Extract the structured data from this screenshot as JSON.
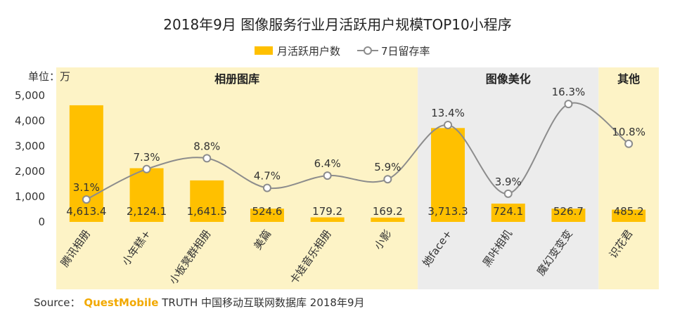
{
  "chart_data": {
    "type": "bar",
    "title": "2018年9月 图像服务行业月活跃用户规模TOP10小程序",
    "unit_label": "单位：万",
    "categories": [
      "腾讯相册",
      "小年糕+",
      "小板凳群相册",
      "美篇",
      "卡娃音乐相册",
      "小影",
      "她face+",
      "黑咔相机",
      "魔幻变变变",
      "识花君"
    ],
    "groups": [
      {
        "name": "相册图库",
        "categories": [
          "腾讯相册",
          "小年糕+",
          "小板凳群相册",
          "美篇",
          "卡娃音乐相册",
          "小影"
        ],
        "color": "#fdf3c6"
      },
      {
        "name": "图像美化",
        "categories": [
          "她face+",
          "黑咔相机",
          "魔幻变变变"
        ],
        "color": "#ececec"
      },
      {
        "name": "其他",
        "categories": [
          "识花君"
        ],
        "color": "#fdf3c6"
      }
    ],
    "series": [
      {
        "name": "月活跃用户数",
        "type": "bar",
        "color": "#ffc000",
        "values": [
          4613.4,
          2124.1,
          1641.5,
          524.6,
          179.2,
          169.2,
          3713.3,
          724.1,
          526.7,
          485.2
        ],
        "labels": [
          "4,613.4",
          "2,124.1",
          "1,641.5",
          "524.6",
          "179.2",
          "169.2",
          "3,713.3",
          "724.1",
          "526.7",
          "485.2"
        ]
      },
      {
        "name": "7日留存率",
        "type": "line",
        "color": "#8c8c8c",
        "values": [
          3.1,
          7.3,
          8.8,
          4.7,
          6.4,
          5.9,
          13.4,
          3.9,
          16.3,
          10.8
        ],
        "labels": [
          "3.1%",
          "7.3%",
          "8.8%",
          "4.7%",
          "6.4%",
          "5.9%",
          "13.4%",
          "3.9%",
          "16.3%",
          "10.8%"
        ]
      }
    ],
    "y_axis": {
      "min": 0,
      "max": 5000,
      "ticks": [
        0,
        1000,
        2000,
        3000,
        4000,
        5000
      ],
      "tick_labels": [
        "0",
        "1,000",
        "2,000",
        "3,000",
        "4,000",
        "5,000"
      ]
    },
    "legend_position": "top-center",
    "grid": false
  },
  "source": {
    "prefix": "Source：",
    "brand": "QuestMobile",
    "text": "TRUTH 中国移动互联网数据库 2018年9月"
  }
}
